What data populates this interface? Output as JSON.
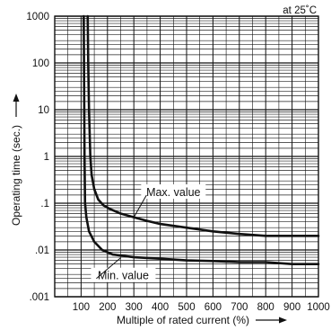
{
  "chart_data": {
    "type": "line",
    "note": "at 25˚C",
    "xlabel": "Multiple of rated current (%)",
    "ylabel": "Operating time (sec.)",
    "x_ticks": [
      100,
      200,
      300,
      400,
      500,
      600,
      700,
      800,
      900,
      1000
    ],
    "x_tick_labels": [
      "100",
      "200",
      "300",
      "400",
      "500",
      "600",
      "700",
      "800",
      "900",
      "1000"
    ],
    "xlim": [
      0,
      1000
    ],
    "y_scale": "log",
    "ylim": [
      0.001,
      1000
    ],
    "y_ticks": [
      0.001,
      0.01,
      0.1,
      1,
      10,
      100,
      1000
    ],
    "y_tick_labels": [
      ".001",
      ".01",
      ".1",
      "1",
      "10",
      "100",
      "1000"
    ],
    "grid": true,
    "series": [
      {
        "name": "Max. value",
        "x": [
          125,
          127,
          130,
          135,
          140,
          150,
          165,
          185,
          210,
          250,
          300,
          350,
          400,
          500,
          600,
          700,
          800,
          900,
          1000
        ],
        "y": [
          1000,
          100,
          10,
          1,
          0.4,
          0.2,
          0.12,
          0.09,
          0.075,
          0.06,
          0.05,
          0.042,
          0.036,
          0.03,
          0.025,
          0.022,
          0.02,
          0.02,
          0.02
        ]
      },
      {
        "name": "Min. value",
        "x": [
          110,
          111,
          112,
          113,
          115,
          120,
          130,
          150,
          180,
          220,
          300,
          400,
          500,
          600,
          700,
          800,
          900,
          1000
        ],
        "y": [
          1000,
          100,
          10,
          1,
          0.1,
          0.05,
          0.025,
          0.015,
          0.01,
          0.008,
          0.007,
          0.0065,
          0.006,
          0.0058,
          0.0055,
          0.0055,
          0.005,
          0.005
        ]
      }
    ],
    "annotations": [
      {
        "text": "Max. value",
        "x": 450,
        "y": 0.17,
        "target_x": 300,
        "target_y": 0.05
      },
      {
        "text": "Min. value",
        "x": 260,
        "y": 0.0028,
        "target_x": 250,
        "target_y": 0.0068
      }
    ]
  }
}
